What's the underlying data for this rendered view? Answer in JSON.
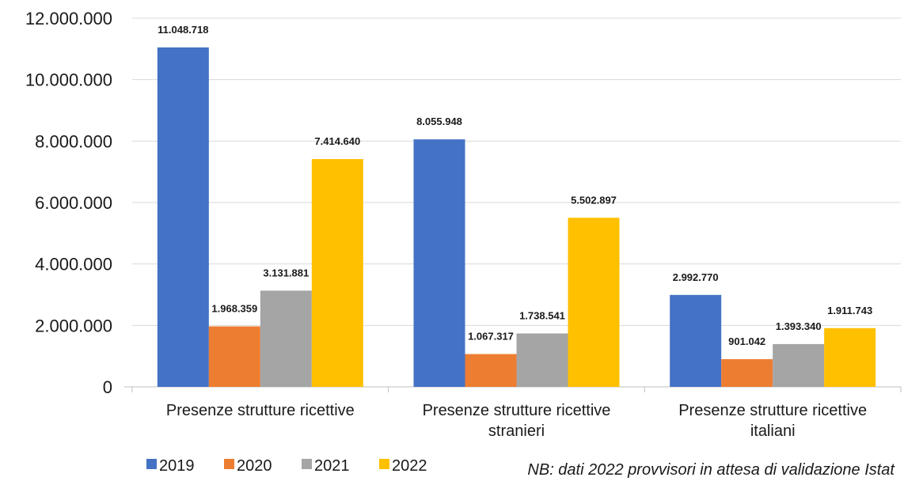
{
  "chart_data": {
    "type": "bar",
    "title": "",
    "xlabel": "",
    "ylabel": "",
    "ylim": [
      0,
      12000000
    ],
    "yticks": [
      0,
      2000000,
      4000000,
      6000000,
      8000000,
      10000000,
      12000000
    ],
    "ytick_labels": [
      "0",
      "2.000.000",
      "4.000.000",
      "6.000.000",
      "8.000.000",
      "10.000.000",
      "12.000.000"
    ],
    "categories": [
      [
        "Presenze strutture ricettive"
      ],
      [
        "Presenze strutture ricettive",
        "stranieri"
      ],
      [
        "Presenze strutture ricettive",
        "italiani"
      ]
    ],
    "series": [
      {
        "name": "2019",
        "color": "#4472C4",
        "values": [
          11048718,
          8055948,
          2992770
        ],
        "labels": [
          "11.048.718",
          "8.055.948",
          "2.992.770"
        ]
      },
      {
        "name": "2020",
        "color": "#ED7D31",
        "values": [
          1968359,
          1067317,
          901042
        ],
        "labels": [
          "1.968.359",
          "1.067.317",
          "901.042"
        ]
      },
      {
        "name": "2021",
        "color": "#A5A5A5",
        "values": [
          3131881,
          1738541,
          1393340
        ],
        "labels": [
          "3.131.881",
          "1.738.541",
          "1.393.340"
        ]
      },
      {
        "name": "2022",
        "color": "#FFC000",
        "values": [
          7414640,
          5502897,
          1911743
        ],
        "labels": [
          "7.414.640",
          "5.502.897",
          "1.911.743"
        ]
      }
    ],
    "grid": "horizontal",
    "legend_position": "bottom-left",
    "note": "NB: dati 2022 provvisori in attesa di validazione Istat"
  }
}
